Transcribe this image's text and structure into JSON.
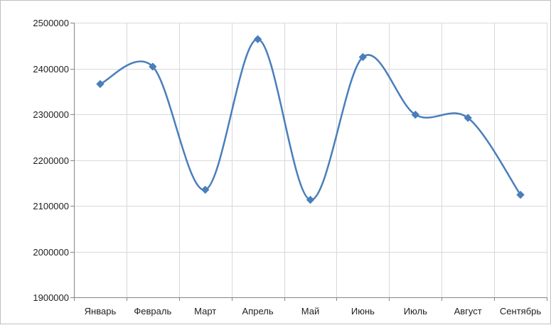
{
  "chart_data": {
    "type": "line",
    "smooth": true,
    "marker": "diamond",
    "title": "",
    "xlabel": "",
    "ylabel": "",
    "categories": [
      "Январь",
      "Февраль",
      "Март",
      "Апрель",
      "Май",
      "Июнь",
      "Июль",
      "Август",
      "Сентябрь"
    ],
    "series": [
      {
        "color": "#4a7ebb",
        "values": [
          2366000,
          2404000,
          2135000,
          2464000,
          2113000,
          2425000,
          2299000,
          2292000,
          2124000
        ]
      }
    ],
    "ylim": [
      1900000,
      2500000
    ],
    "yticks": [
      1900000,
      2000000,
      2100000,
      2200000,
      2300000,
      2400000,
      2500000
    ],
    "ytick_labels": [
      "1900000",
      "2000000",
      "2100000",
      "2200000",
      "2300000",
      "2400000",
      "2500000"
    ],
    "grid": "both",
    "legend": "none",
    "colors": {
      "gridline": "#d9d9d9",
      "axis": "#868686",
      "line": "#4a7ebb",
      "marker": "#4a7ebb"
    }
  }
}
